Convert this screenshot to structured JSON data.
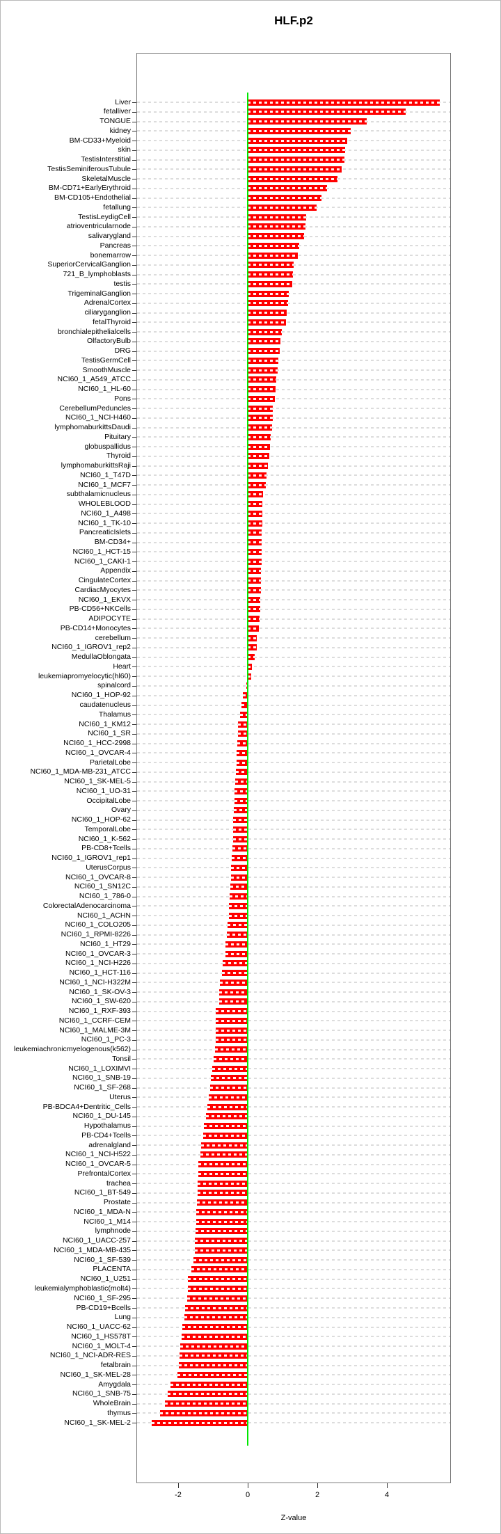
{
  "title": "HLF.p2",
  "chart_data": {
    "type": "bar",
    "orientation": "horizontal",
    "title": "HLF.p2",
    "xlabel": "Z-value",
    "xticks": [
      -2,
      0,
      2,
      4
    ],
    "xlim": [
      -3.2,
      5.85
    ],
    "grid": "dashed-horizontal",
    "legend": "none",
    "bar_color": "#ff0000",
    "zero_line_color": "#00e600",
    "categories": [
      "Liver",
      "fetalliver",
      "TONGUE",
      "kidney",
      "BM-CD33+Myeloid",
      "skin",
      "TestisInterstitial",
      "TestisSeminiferousTubule",
      "SkeletalMuscle",
      "BM-CD71+EarlyErythroid",
      "BM-CD105+Endothelial",
      "fetallung",
      "TestisLeydigCell",
      "atrioventricularnode",
      "salivarygland",
      "Pancreas",
      "bonemarrow",
      "SuperiorCervicalGanglion",
      "721_B_lymphoblasts",
      "testis",
      "TrigeminalGanglion",
      "AdrenalCortex",
      "ciliaryganglion",
      "fetalThyroid",
      "bronchialepithelialcells",
      "OlfactoryBulb",
      "DRG",
      "TestisGermCell",
      "SmoothMuscle",
      "NCI60_1_A549_ATCC",
      "NCI60_1_HL-60",
      "Pons",
      "CerebellumPeduncles",
      "NCI60_1_NCI-H460",
      "lymphomaburkittsDaudi",
      "Pituitary",
      "globuspallidus",
      "Thyroid",
      "lymphomaburkittsRaji",
      "NCI60_1_T47D",
      "NCI60_1_MCF7",
      "subthalamicnucleus",
      "WHOLEBLOOD",
      "NCI60_1_A498",
      "NCI60_1_TK-10",
      "PancreaticIslets",
      "BM-CD34+",
      "NCI60_1_HCT-15",
      "NCI60_1_CAKI-1",
      "Appendix",
      "CingulateCortex",
      "CardiacMyocytes",
      "NCI60_1_EKVX",
      "PB-CD56+NKCells",
      "ADIPOCYTE",
      "PB-CD14+Monocytes",
      "cerebellum",
      "NCI60_1_IGROV1_rep2",
      "MedullaOblongata",
      "Heart",
      "leukemiapromyelocytic(hl60)",
      "spinalcord",
      "NCI60_1_HOP-92",
      "caudatenucleus",
      "Thalamus",
      "NCI60_1_KM12",
      "NCI60_1_SR",
      "NCI60_1_HCC-2998",
      "NCI60_1_OVCAR-4",
      "ParietalLobe",
      "NCI60_1_MDA-MB-231_ATCC",
      "NCI60_1_SK-MEL-5",
      "NCI60_1_UO-31",
      "OccipitalLobe",
      "Ovary",
      "NCI60_1_HOP-62",
      "TemporalLobe",
      "NCI60_1_K-562",
      "PB-CD8+Tcells",
      "NCI60_1_IGROV1_rep1",
      "UterusCorpus",
      "NCI60_1_OVCAR-8",
      "NCI60_1_SN12C",
      "NCI60_1_786-0",
      "ColorectalAdenocarcinoma",
      "NCI60_1_ACHN",
      "NCI60_1_COLO205",
      "NCI60_1_RPMI-8226",
      "NCI60_1_HT29",
      "NCI60_1_OVCAR-3",
      "NCI60_1_NCI-H226",
      "NCI60_1_HCT-116",
      "NCI60_1_NCI-H322M",
      "NCI60_1_SK-OV-3",
      "NCI60_1_SW-620",
      "NCI60_1_RXF-393",
      "NCI60_1_CCRF-CEM",
      "NCI60_1_MALME-3M",
      "NCI60_1_PC-3",
      "leukemiachronicmyelogenous(k562)",
      "Tonsil",
      "NCI60_1_LOXIMVI",
      "NCI60_1_SNB-19",
      "NCI60_1_SF-268",
      "Uterus",
      "PB-BDCA4+Dentritic_Cells",
      "NCI60_1_DU-145",
      "Hypothalamus",
      "PB-CD4+Tcells",
      "adrenalgland",
      "NCI60_1_NCI-H522",
      "NCI60_1_OVCAR-5",
      "PrefrontalCortex",
      "trachea",
      "NCI60_1_BT-549",
      "Prostate",
      "NCI60_1_MDA-N",
      "NCI60_1_M14",
      "lymphnode",
      "NCI60_1_UACC-257",
      "NCI60_1_MDA-MB-435",
      "NCI60_1_SF-539",
      "PLACENTA",
      "NCI60_1_U251",
      "leukemialymphoblastic(molt4)",
      "NCI60_1_SF-295",
      "PB-CD19+Bcells",
      "Lung",
      "NCI60_1_UACC-62",
      "NCI60_1_HS578T",
      "NCI60_1_MOLT-4",
      "NCI60_1_NCI-ADR-RES",
      "fetalbrain",
      "NCI60_1_SK-MEL-28",
      "Amygdala",
      "NCI60_1_SNB-75",
      "WholeBrain",
      "thymus",
      "NCI60_1_SK-MEL-2"
    ],
    "values": [
      5.51,
      4.53,
      3.41,
      2.95,
      2.85,
      2.8,
      2.78,
      2.69,
      2.57,
      2.27,
      2.11,
      1.97,
      1.68,
      1.65,
      1.61,
      1.48,
      1.43,
      1.31,
      1.29,
      1.28,
      1.18,
      1.16,
      1.11,
      1.1,
      0.97,
      0.93,
      0.92,
      0.87,
      0.86,
      0.81,
      0.79,
      0.77,
      0.72,
      0.71,
      0.7,
      0.66,
      0.63,
      0.61,
      0.57,
      0.53,
      0.51,
      0.43,
      0.42,
      0.42,
      0.41,
      0.4,
      0.4,
      0.39,
      0.39,
      0.38,
      0.38,
      0.37,
      0.36,
      0.35,
      0.34,
      0.31,
      0.26,
      0.25,
      0.19,
      0.11,
      0.1,
      -0.05,
      -0.15,
      -0.19,
      -0.23,
      -0.29,
      -0.29,
      -0.31,
      -0.32,
      -0.32,
      -0.34,
      -0.37,
      -0.39,
      -0.39,
      -0.4,
      -0.42,
      -0.43,
      -0.43,
      -0.45,
      -0.47,
      -0.49,
      -0.49,
      -0.51,
      -0.52,
      -0.54,
      -0.54,
      -0.59,
      -0.61,
      -0.65,
      -0.65,
      -0.73,
      -0.75,
      -0.8,
      -0.83,
      -0.83,
      -0.92,
      -0.92,
      -0.92,
      -0.93,
      -0.95,
      -0.99,
      -1.03,
      -1.06,
      -1.09,
      -1.12,
      -1.16,
      -1.21,
      -1.27,
      -1.28,
      -1.35,
      -1.36,
      -1.42,
      -1.43,
      -1.44,
      -1.45,
      -1.47,
      -1.48,
      -1.49,
      -1.51,
      -1.52,
      -1.53,
      -1.56,
      -1.62,
      -1.72,
      -1.73,
      -1.74,
      -1.8,
      -1.82,
      -1.89,
      -1.9,
      -1.95,
      -1.96,
      -1.99,
      -2.02,
      -2.23,
      -2.3,
      -2.39,
      -2.53,
      -2.77
    ]
  }
}
